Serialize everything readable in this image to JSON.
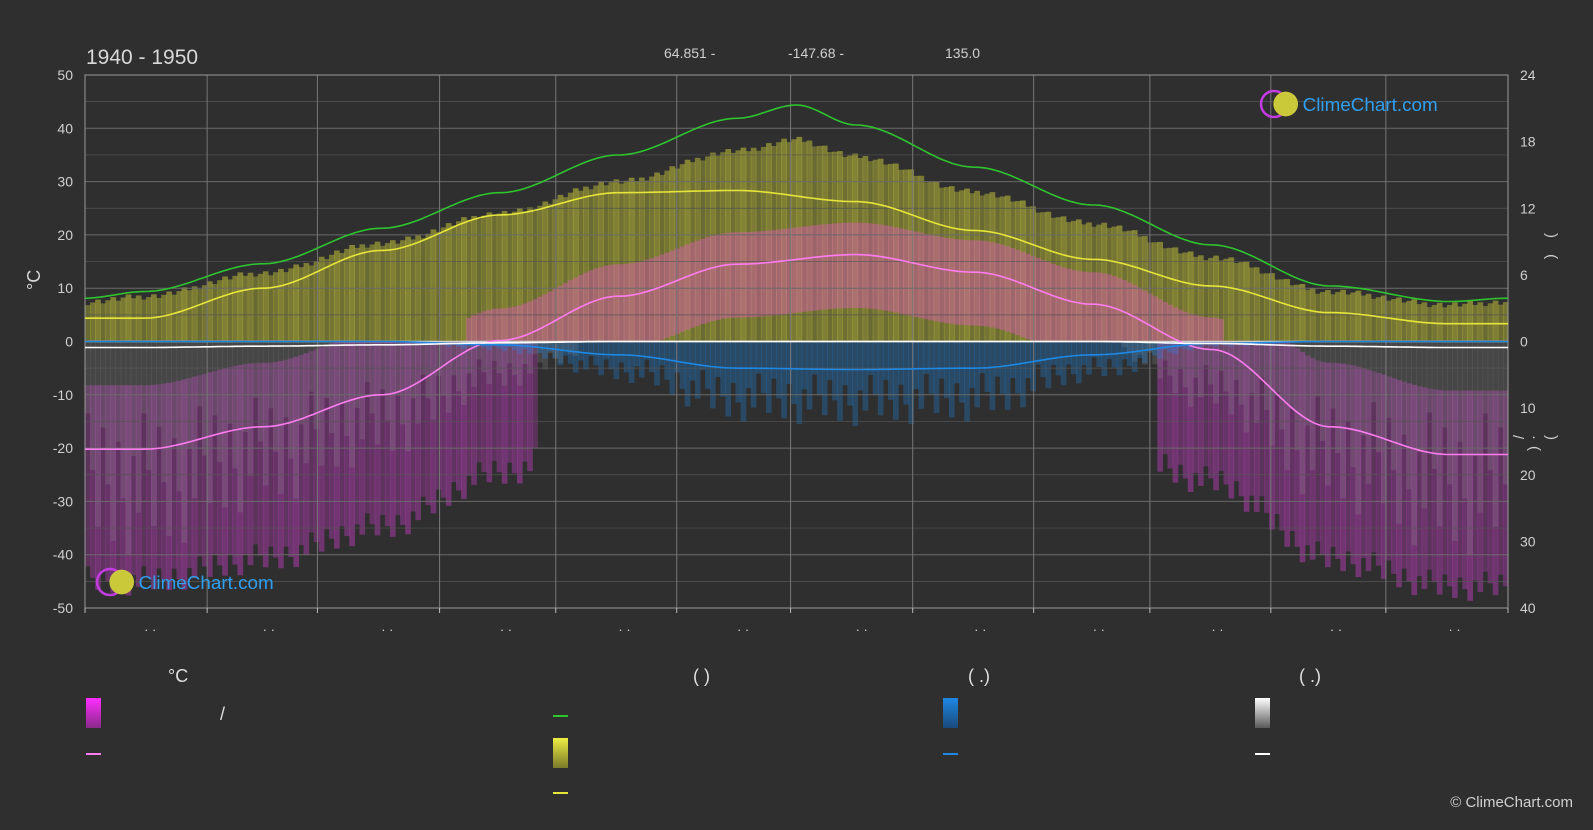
{
  "header": {
    "title": "1940 - 1950",
    "lat": "64.851 -",
    "lon": "-147.68 -",
    "elev": "135.0"
  },
  "axes": {
    "left_unit": "°C",
    "right_top_label": ")  (",
    "right_bottom_label": ")  ·(  /"
  },
  "brand": {
    "name": "ClimeChart.com",
    "copyright": "© ClimeChart.com"
  },
  "legend": {
    "col1_head": "°C",
    "col1_item1": "/",
    "col2_head": "(          )",
    "col3_head": "(   .)",
    "col4_head": "(   .)"
  },
  "colors": {
    "background": "#2f2f2f",
    "daylight": "#2ec42e",
    "sunshine": "#e6e63a",
    "sunshine_band": "#b4b43a",
    "temp_band": "#dc5ab4",
    "temp_line": "#ff7cf0",
    "rain": "#1e88e5",
    "snow": "#ffffff",
    "brand": "#2f9ff0"
  },
  "chart_data": {
    "type": "line",
    "x_label": "",
    "x_ticks": [
      "· ·",
      "· ·",
      "· ·",
      "· ·",
      "· ·",
      "· ·",
      "· ·",
      "· ·",
      "· ·",
      "· ·",
      "· ·",
      "· ·"
    ],
    "y_left": {
      "label": "°C",
      "range": [
        -50,
        50
      ],
      "ticks": [
        50,
        40,
        30,
        20,
        10,
        0,
        -10,
        -20,
        -30,
        -40,
        -50
      ]
    },
    "y_right_top": {
      "range": [
        0,
        24
      ],
      "ticks": [
        24,
        18,
        12,
        6,
        0
      ]
    },
    "y_right_bottom": {
      "range": [
        0,
        40
      ],
      "ticks": [
        10,
        20,
        30,
        40
      ]
    },
    "x_months": [
      0,
      0.5,
      1.5,
      2.5,
      3.5,
      4.5,
      5.5,
      6.5,
      7.5,
      8.5,
      9.5,
      10.5,
      11.5,
      12
    ],
    "series": [
      {
        "key": "daylight",
        "axis": "right_top",
        "values": [
          3.9,
          4.5,
          7.0,
          10.2,
          13.4,
          16.8,
          20.1,
          21.3,
          19.5,
          15.7,
          12.3,
          8.7,
          5.0,
          3.6,
          3.9
        ],
        "x": [
          0,
          0.5,
          1.5,
          2.5,
          3.5,
          4.5,
          5.5,
          6.0,
          6.5,
          7.5,
          8.5,
          9.5,
          10.5,
          11.5,
          12
        ]
      },
      {
        "key": "sunshine",
        "axis": "right_top",
        "values": [
          2.1,
          2.1,
          4.8,
          8.2,
          11.4,
          13.4,
          13.6,
          12.6,
          10.0,
          7.4,
          5.0,
          2.6,
          1.6,
          1.6
        ]
      },
      {
        "key": "temp_mean_high",
        "axis": "left",
        "values": [
          -20.2,
          -20.2,
          -16.0,
          -10.0,
          0.2,
          8.5,
          14.5,
          16.3,
          13.0,
          7.0,
          -1.5,
          -16.0,
          -21.2,
          -21.2
        ]
      },
      {
        "key": "rain",
        "axis": "right_bottom",
        "values": [
          0,
          0,
          0,
          0,
          0.5,
          2.0,
          4.0,
          4.2,
          4.0,
          2.0,
          0.3,
          0,
          0,
          0
        ]
      },
      {
        "key": "snow",
        "axis": "right_bottom",
        "values": [
          0.9,
          0.9,
          0.7,
          0.5,
          0.2,
          0,
          0,
          0,
          0,
          0,
          0.3,
          0.7,
          0.9,
          0.9
        ]
      }
    ]
  }
}
